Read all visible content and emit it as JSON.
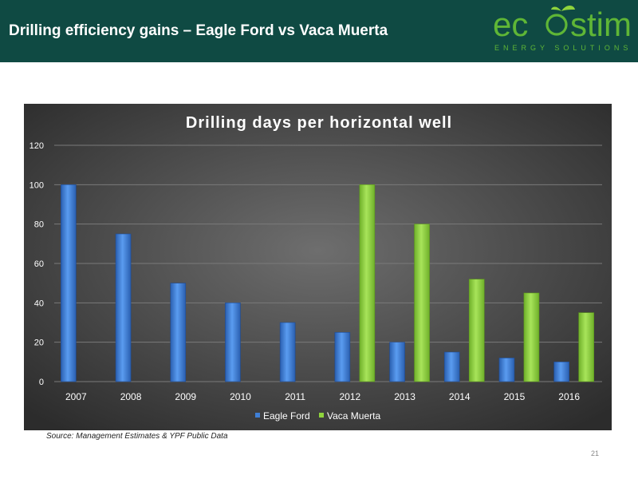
{
  "header": {
    "title": "Drilling efficiency gains – Eagle Ford vs Vaca Muerta",
    "logo_text": "ecostim",
    "logo_tagline": "ENERGY SOLUTIONS"
  },
  "footer": {
    "source": "Source: Management Estimates & YPF Public Data",
    "page_number": "21"
  },
  "colors": {
    "header_bg": "#0f4a43",
    "eagle_ford": "#3f7fd6",
    "vaca_muerta": "#8fd43c",
    "logo_green": "#5fb636"
  },
  "chart_data": {
    "type": "bar",
    "title": "Drilling days per horizontal well",
    "categories": [
      "2007",
      "2008",
      "2009",
      "2010",
      "2011",
      "2012",
      "2013",
      "2014",
      "2015",
      "2016"
    ],
    "series": [
      {
        "name": "Eagle Ford",
        "color": "#3f7fd6",
        "values": [
          100,
          75,
          50,
          40,
          30,
          25,
          20,
          15,
          12,
          10
        ]
      },
      {
        "name": "Vaca Muerta",
        "color": "#8fd43c",
        "values": [
          null,
          null,
          null,
          null,
          null,
          100,
          80,
          52,
          45,
          35
        ]
      }
    ],
    "yticks": [
      0,
      20,
      40,
      60,
      80,
      100,
      120
    ],
    "ylim": [
      0,
      120
    ],
    "grid": true,
    "legend_position": "bottom"
  }
}
